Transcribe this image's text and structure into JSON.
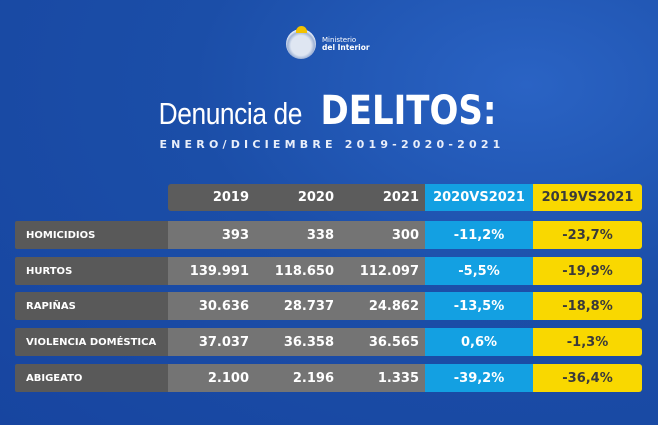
{
  "logo": {
    "line1": "Ministerio",
    "line2": "del Interior"
  },
  "title": {
    "light": "Denuncia de",
    "bold": "DELITOS:"
  },
  "subtitle": "ENERO/DICIEMBRE 2019-2020-2021",
  "colors": {
    "background": "#1b4ea8",
    "cyan": "#13a0e2",
    "yellow": "#f9d800",
    "label": "#595959",
    "cell": "#747474"
  },
  "table": {
    "headers": [
      "2019",
      "2020",
      "2021",
      "2020VS2021",
      "2019VS2021"
    ],
    "rows": [
      {
        "label": "HOMICIDIOS",
        "values": [
          "393",
          "338",
          "300",
          "-11,2%",
          "-23,7%"
        ]
      },
      {
        "label": "HURTOS",
        "values": [
          "139.991",
          "118.650",
          "112.097",
          "-5,5%",
          "-19,9%"
        ]
      },
      {
        "label": "RAPIÑAS",
        "values": [
          "30.636",
          "28.737",
          "24.862",
          "-13,5%",
          "-18,8%"
        ]
      },
      {
        "label": "VIOLENCIA DOMÉSTICA",
        "values": [
          "37.037",
          "36.358",
          "36.565",
          "0,6%",
          "-1,3%"
        ]
      },
      {
        "label": "ABIGEATO",
        "values": [
          "2.100",
          "2.196",
          "1.335",
          "-39,2%",
          "-36,4%"
        ]
      }
    ]
  }
}
